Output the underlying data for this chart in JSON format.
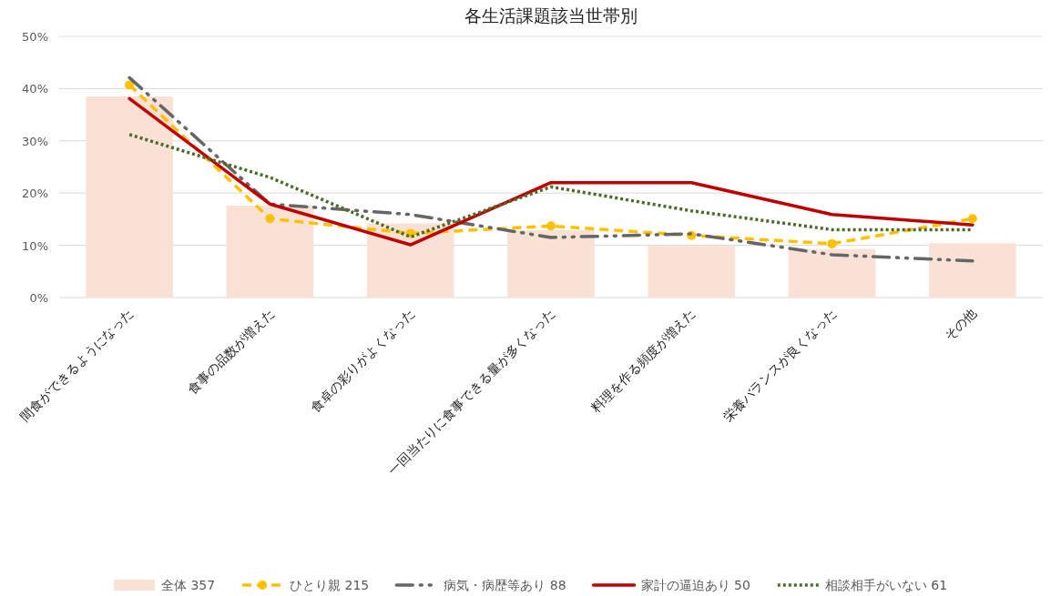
{
  "chart_data": {
    "type": "bar",
    "title": "各生活課題該当世帯別",
    "categories": [
      "間食ができるようになった",
      "食事の品数が増えた",
      "食卓の彩りがよくなった",
      "一回当たりに食事できる量が多くなった",
      "料理を作る頻度が増えた",
      "栄養バランスが良くなった",
      "その他"
    ],
    "series": [
      {
        "name": "全体 357",
        "color": "#f9e2d5",
        "values": [
          38.5,
          17.6,
          14.2,
          12.9,
          9.9,
          9.3,
          10.4
        ]
      },
      {
        "name": "ひとり親 215",
        "type": "line",
        "color": "#ffc000",
        "line_style": "dashed",
        "marker": "circle",
        "values": [
          40.7,
          15.1,
          12.3,
          13.7,
          11.9,
          10.3,
          15.1
        ]
      },
      {
        "name": "病気・病歴等あり 88",
        "type": "line",
        "color": "#666666",
        "line_style": "dashdot",
        "marker": "none",
        "values": [
          42.1,
          17.9,
          15.9,
          11.5,
          12.2,
          8.2,
          7.0
        ]
      },
      {
        "name": "家計の逼迫あり 50",
        "type": "line",
        "color": "#c00000",
        "line_style": "solid",
        "marker": "none",
        "values": [
          38.1,
          17.9,
          10.1,
          22.0,
          22.0,
          15.9,
          13.9
        ]
      },
      {
        "name": "相談相手がいない 61",
        "type": "line",
        "color": "#4a6b26",
        "line_style": "dotted",
        "marker": "none",
        "values": [
          31.2,
          23.0,
          11.6,
          21.2,
          16.6,
          13.0,
          13.0
        ]
      }
    ],
    "ylim": [
      0,
      50
    ],
    "yticks": [
      {
        "value": 0,
        "label": "0%"
      },
      {
        "value": 10,
        "label": "10%"
      },
      {
        "value": 20,
        "label": "20%"
      },
      {
        "value": 30,
        "label": "30%"
      },
      {
        "value": 40,
        "label": "40%"
      },
      {
        "value": 50,
        "label": "50%"
      }
    ],
    "grid": "y",
    "legend": "bottom"
  }
}
